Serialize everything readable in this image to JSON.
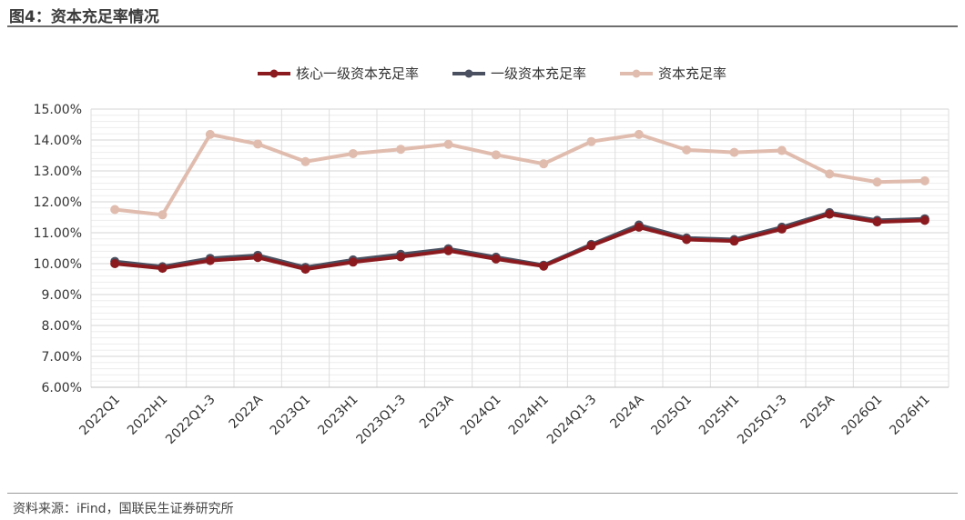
{
  "figure": {
    "title": "图4：资本充足率情况",
    "source": "资料来源：iFind，国联民生证券研究所"
  },
  "chart_data": {
    "type": "line",
    "title": "",
    "xlabel": "",
    "ylabel": "",
    "categories": [
      "2022Q1",
      "2022H1",
      "2022Q1-3",
      "2022A",
      "2023Q1",
      "2023H1",
      "2023Q1-3",
      "2023A",
      "2024Q1",
      "2024H1",
      "2024Q1-3",
      "2024A",
      "2025Q1",
      "2025H1",
      "2025Q1-3",
      "2025A",
      "2026Q1",
      "2026H1"
    ],
    "ylim": [
      6,
      15
    ],
    "y_ticks": [
      "6.00%",
      "7.00%",
      "8.00%",
      "9.00%",
      "10.00%",
      "11.00%",
      "12.00%",
      "13.00%",
      "14.00%",
      "15.00%"
    ],
    "grid": true,
    "legend_position": "top-center",
    "series": [
      {
        "name": "核心一级资本充足率",
        "color": "#8b1a1f",
        "values": [
          10.0,
          9.85,
          10.1,
          10.2,
          9.82,
          10.05,
          10.22,
          10.42,
          10.15,
          9.92,
          10.58,
          11.18,
          10.78,
          10.73,
          11.12,
          11.6,
          11.35,
          11.4
        ]
      },
      {
        "name": "一级资本充足率",
        "color": "#4a5060",
        "values": [
          10.07,
          9.9,
          10.17,
          10.27,
          9.88,
          10.12,
          10.3,
          10.48,
          10.21,
          9.95,
          10.62,
          11.25,
          10.83,
          10.78,
          11.18,
          11.65,
          11.4,
          11.45
        ]
      },
      {
        "name": "资本充足率",
        "color": "#e0bcae",
        "values": [
          11.75,
          11.58,
          14.18,
          13.87,
          13.3,
          13.56,
          13.7,
          13.86,
          13.52,
          13.23,
          13.95,
          14.18,
          13.68,
          13.6,
          13.66,
          12.9,
          12.64,
          12.68
        ]
      }
    ]
  }
}
